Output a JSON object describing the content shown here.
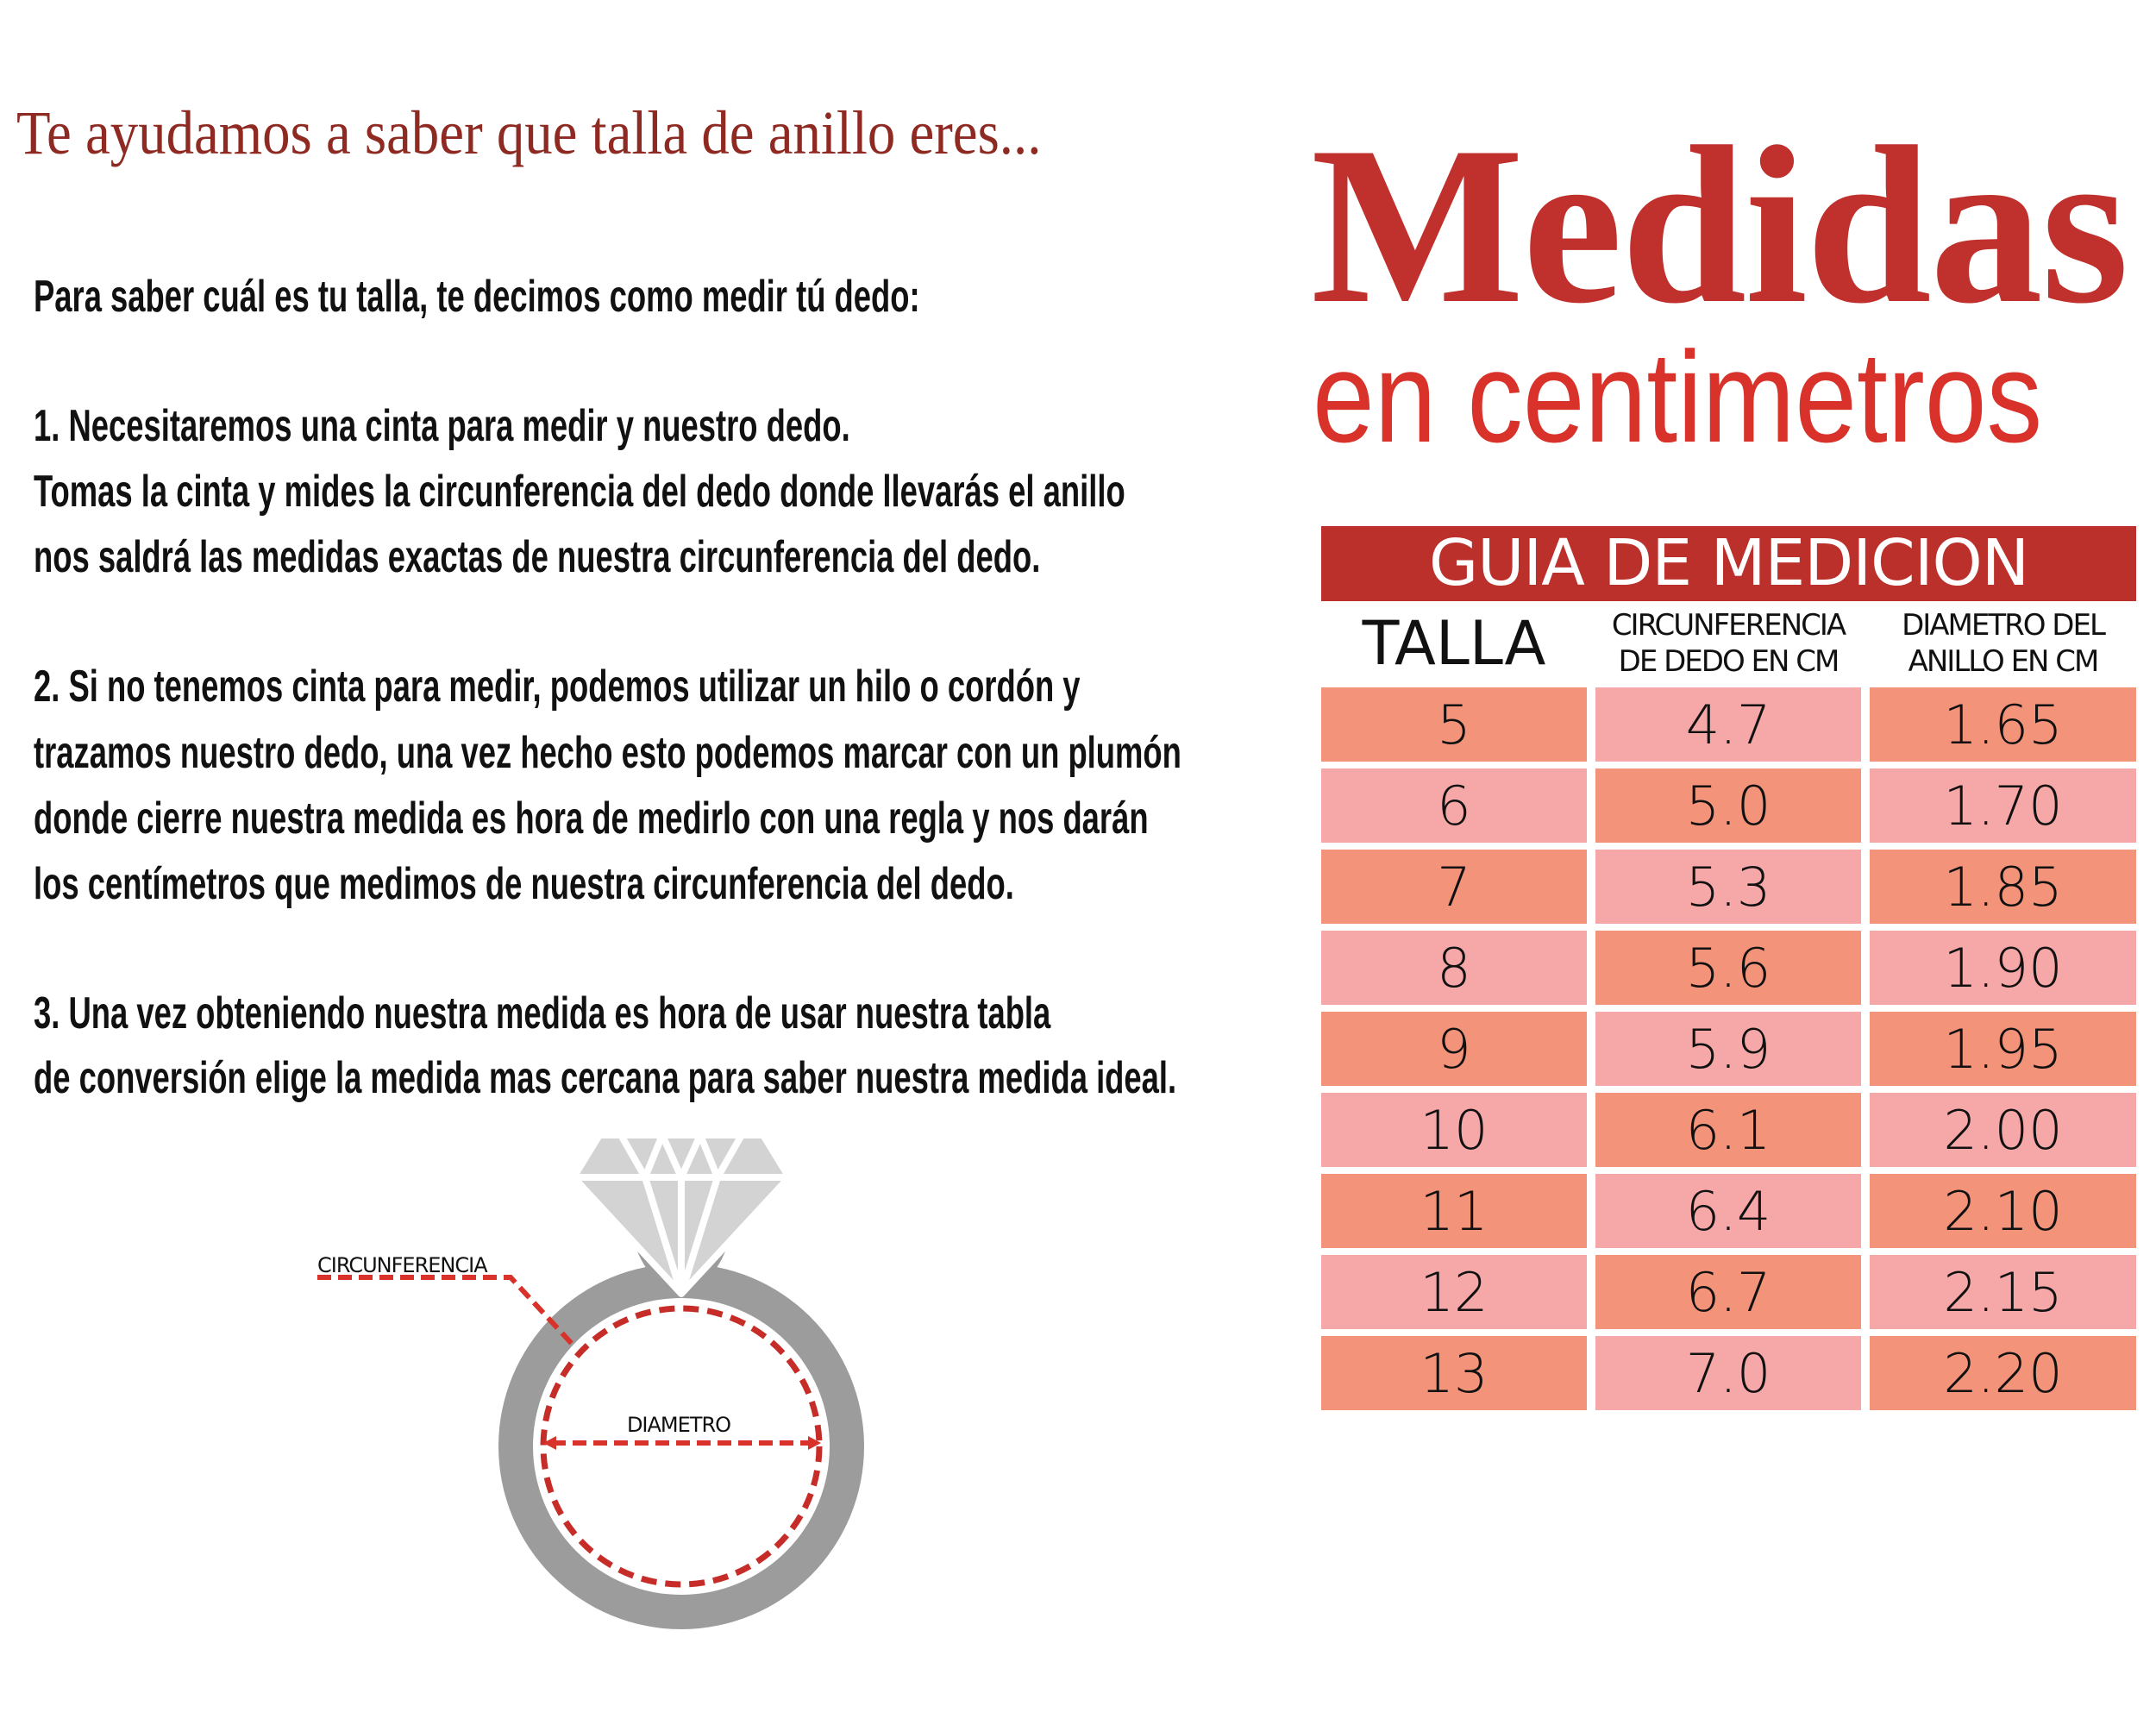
{
  "tagline": "Te ayudamos a saber que talla de anillo eres...",
  "title": "Medidas",
  "subtitle": "en centimetros",
  "instructions": [
    "Para saber cuál es tu talla, te decimos como medir tú dedo:",
    "1. Necesitaremos una cinta para medir y nuestro dedo.",
    "Tomas la cinta y mides la circunferencia del dedo donde llevarás el anillo",
    "nos saldrá las medidas exactas de nuestra circunferencia del dedo.",
    "2. Si no tenemos cinta para medir, podemos utilizar un hilo o cordón y",
    "trazamos nuestro dedo, una vez hecho esto podemos marcar con un plumón",
    "donde cierre nuestra medida es hora de medirlo con una regla y nos darán",
    "los centímetros que medimos de nuestra circunferencia del dedo.",
    "3. Una vez obteniendo nuestra medida es hora de usar nuestra tabla",
    "de conversión elige la medida mas cercana para saber nuestra medida ideal."
  ],
  "diagram": {
    "circumference_label": "CIRCUNFERENCIA",
    "diameter_label": "DIAMETRO"
  },
  "table": {
    "banner": "GUIA DE MEDICION",
    "headers": {
      "size": "TALLA",
      "circ_line1": "CIRCUNFERENCIA",
      "circ_line2": "DE DEDO EN CM",
      "diam_line1": "DIAMETRO DEL",
      "diam_line2": "ANILLO EN CM"
    },
    "rows": [
      [
        "5",
        "4.7",
        "1.65"
      ],
      [
        "6",
        "5.0",
        "1.70"
      ],
      [
        "7",
        "5.3",
        "1.85"
      ],
      [
        "8",
        "5.6",
        "1.90"
      ],
      [
        "9",
        "5.9",
        "1.95"
      ],
      [
        "10",
        "6.1",
        "2.00"
      ],
      [
        "11",
        "6.4",
        "2.10"
      ],
      [
        "12",
        "6.7",
        "2.15"
      ],
      [
        "13",
        "7.0",
        "2.20"
      ]
    ]
  },
  "colors": {
    "banner": "#bb302b",
    "title": "#c0302c",
    "cell_orange": "#f2937a",
    "cell_pink": "#f5a8a7",
    "ring": "#9c9c9c",
    "diamond": "#d3d3d3"
  }
}
